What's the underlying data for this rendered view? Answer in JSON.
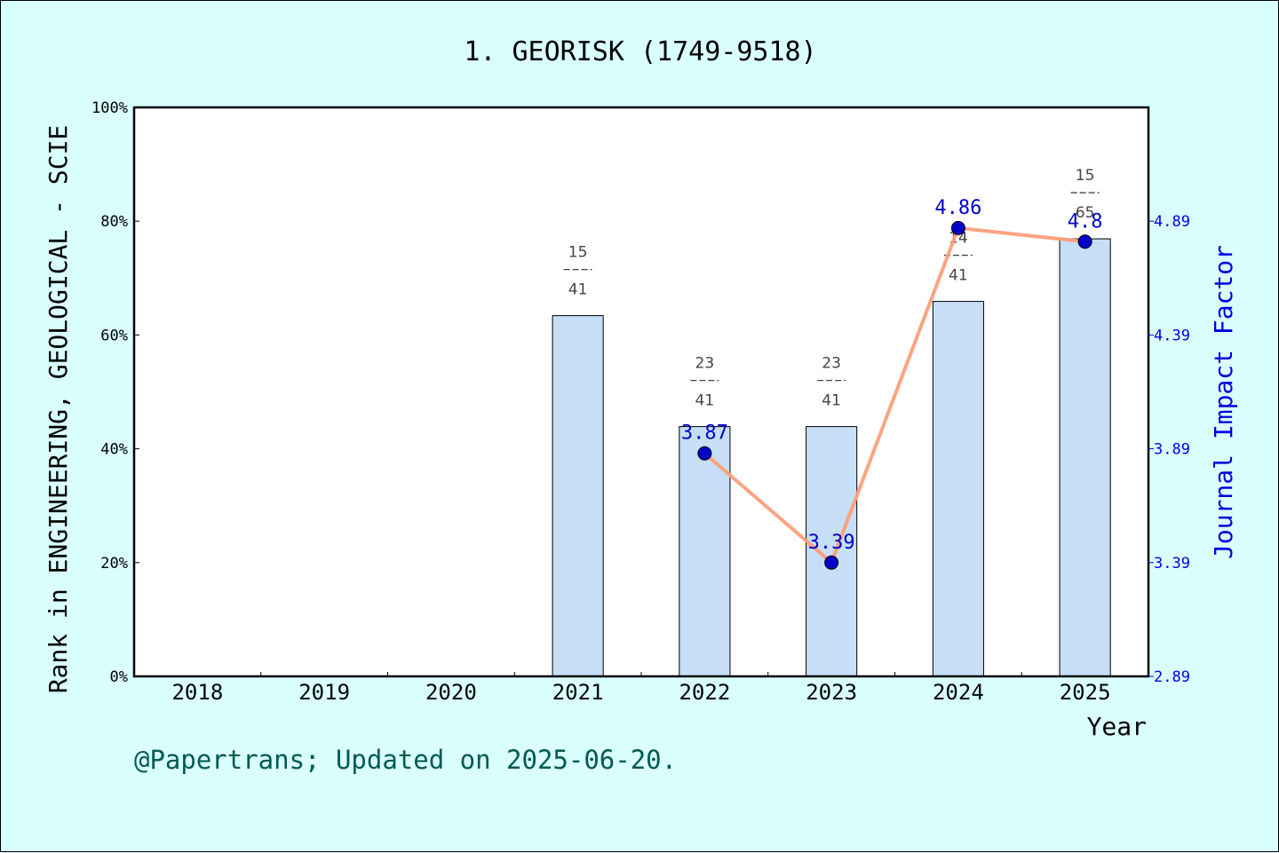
{
  "chart_data": {
    "type": "bar",
    "title": "1. GEORISK (1749-9518)",
    "xlabel": "Year",
    "ylabel": "Rank in ENGINEERING, GEOLOGICAL - SCIE",
    "ylabel_right": "Journal Impact Factor",
    "categories": [
      "2018",
      "2019",
      "2020",
      "2021",
      "2022",
      "2023",
      "2024",
      "2025"
    ],
    "yticks": [
      "0%",
      "20%",
      "40%",
      "60%",
      "80%",
      "100%"
    ],
    "ylim": [
      0,
      100
    ],
    "y2ticks": [
      "2.89",
      "3.39",
      "3.89",
      "4.39",
      "4.89"
    ],
    "y2lim": [
      2.89,
      5.39
    ],
    "bars": [
      {
        "year": "2021",
        "rank": "15",
        "total": "41",
        "percentile": 63.4
      },
      {
        "year": "2022",
        "rank": "23",
        "total": "41",
        "percentile": 43.9
      },
      {
        "year": "2023",
        "rank": "23",
        "total": "41",
        "percentile": 43.9
      },
      {
        "year": "2024",
        "rank": "14",
        "total": "41",
        "percentile": 65.9
      },
      {
        "year": "2025",
        "rank": "15",
        "total": "65",
        "percentile": 76.9
      }
    ],
    "impact_factor": [
      {
        "year": "2022",
        "value": 3.87,
        "label": "3.87"
      },
      {
        "year": "2023",
        "value": 3.39,
        "label": "3.39"
      },
      {
        "year": "2024",
        "value": 4.86,
        "label": "4.86"
      },
      {
        "year": "2025",
        "value": 4.8,
        "label": "4.8"
      }
    ],
    "bar_color": "#c6dff7",
    "line_color": "#ff9e7a",
    "marker_color": "#0000cc"
  },
  "footer": "@Papertrans; Updated on 2025-06-20."
}
